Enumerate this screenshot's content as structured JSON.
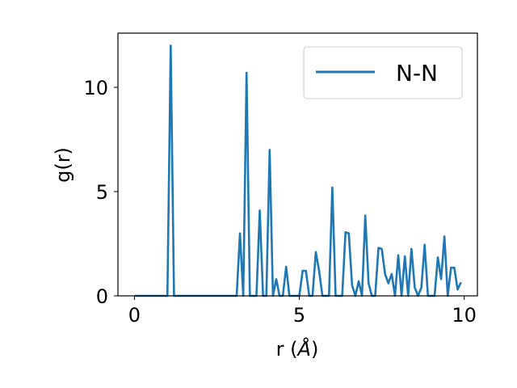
{
  "chart_data": {
    "type": "line",
    "xlabel_prefix": "r (",
    "xlabel_symbol": "Å",
    "xlabel_suffix": ")",
    "ylabel": "g(r)",
    "xlim": [
      -0.5,
      10.4
    ],
    "ylim": [
      0,
      12.6
    ],
    "xticks": [
      0,
      5,
      10
    ],
    "xtick_labels": [
      "0",
      "5",
      "10"
    ],
    "yticks": [
      0,
      5,
      10
    ],
    "ytick_labels": [
      "0",
      "5",
      "10"
    ],
    "grid": false,
    "legend_position": "top-right",
    "series": [
      {
        "name": "N-N",
        "color": "#1f77b4",
        "x": [
          0.0,
          0.1,
          0.2,
          0.3,
          0.4,
          0.5,
          0.6,
          0.7,
          0.8,
          0.9,
          1.0,
          1.1,
          1.2,
          1.3,
          1.4,
          1.5,
          1.6,
          1.7,
          1.8,
          1.9,
          2.0,
          2.1,
          2.2,
          2.3,
          2.4,
          2.5,
          2.6,
          2.7,
          2.8,
          2.9,
          3.0,
          3.1,
          3.2,
          3.3,
          3.4,
          3.5,
          3.6,
          3.7,
          3.8,
          3.9,
          4.0,
          4.1,
          4.2,
          4.3,
          4.4,
          4.5,
          4.6,
          4.7,
          4.8,
          4.9,
          5.0,
          5.1,
          5.2,
          5.3,
          5.4,
          5.5,
          5.6,
          5.7,
          5.8,
          5.9,
          6.0,
          6.1,
          6.2,
          6.3,
          6.4,
          6.5,
          6.6,
          6.7,
          6.8,
          6.9,
          7.0,
          7.1,
          7.2,
          7.3,
          7.4,
          7.5,
          7.6,
          7.7,
          7.8,
          7.9,
          8.0,
          8.1,
          8.2,
          8.3,
          8.4,
          8.5,
          8.6,
          8.7,
          8.8,
          8.9,
          9.0,
          9.1,
          9.2,
          9.3,
          9.4,
          9.5,
          9.6,
          9.7,
          9.8,
          9.9
        ],
        "y": [
          0,
          0,
          0,
          0,
          0,
          0,
          0,
          0,
          0,
          0,
          0,
          12.0,
          0,
          0,
          0,
          0,
          0,
          0,
          0,
          0,
          0,
          0,
          0,
          0,
          0,
          0,
          0,
          0,
          0,
          0,
          0,
          0,
          3.0,
          0,
          10.7,
          0,
          0,
          0,
          4.1,
          0,
          0,
          7.0,
          0,
          0.8,
          0,
          0,
          1.4,
          0,
          0,
          0,
          0,
          1.2,
          1.2,
          0,
          0,
          2.1,
          1.2,
          0,
          0,
          0,
          5.2,
          0,
          0,
          0,
          3.05,
          3.0,
          0.5,
          0,
          0.7,
          0,
          3.85,
          0.6,
          0,
          0,
          2.3,
          2.25,
          1.05,
          0.6,
          1.05,
          0,
          1.95,
          0,
          1.9,
          0,
          2.25,
          0.4,
          0,
          0.4,
          2.45,
          0,
          0,
          0,
          1.85,
          0.8,
          2.85,
          0,
          1.35,
          1.35,
          0.3,
          0.65
        ]
      }
    ]
  }
}
